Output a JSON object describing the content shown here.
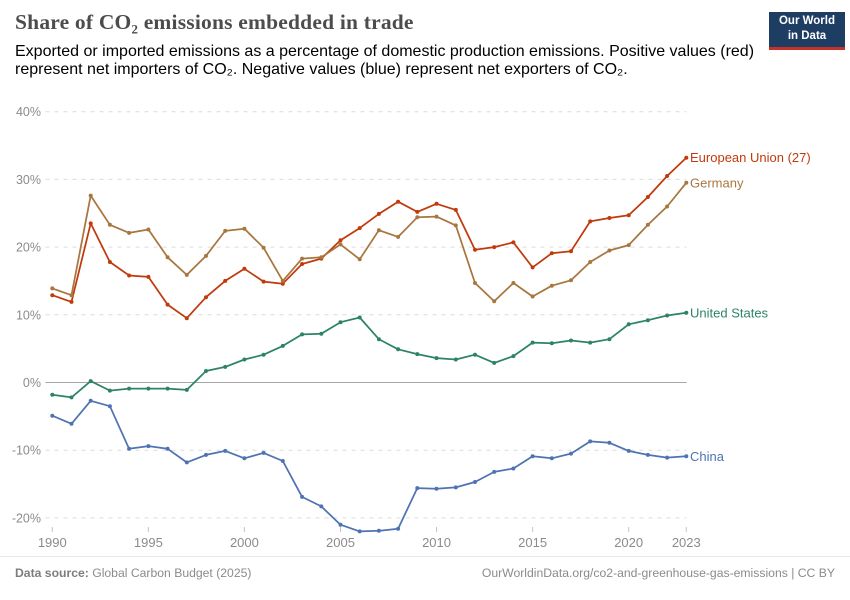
{
  "header": {
    "title": "Share of CO₂ emissions embedded in trade",
    "subtitle_line1": "Exported or imported emissions as a percentage of domestic production emissions. Positive values (red)",
    "subtitle_line2": "represent net importers of CO₂. Negative values (blue) represent net exporters of CO₂."
  },
  "logo": {
    "line1": "Our World",
    "line2": "in Data"
  },
  "chart_data": {
    "type": "line",
    "title": "Share of CO₂ emissions embedded in trade",
    "xlabel": "",
    "ylabel": "",
    "ylim": [
      -24,
      40
    ],
    "yticks": [
      40,
      30,
      20,
      10,
      0,
      -10,
      -20
    ],
    "xticks": [
      1990,
      1995,
      2000,
      2005,
      2010,
      2015,
      2020,
      2023
    ],
    "grid": "dashed-horizontal",
    "legend_position": "right-end-labels",
    "axis": {
      "grid_color": "#dcdcdc",
      "zero_line_color": "#a6a6a6",
      "tick_color": "#c4c4c4"
    },
    "x": [
      1990,
      1991,
      1992,
      1993,
      1994,
      1995,
      1996,
      1997,
      1998,
      1999,
      2000,
      2001,
      2002,
      2003,
      2004,
      2005,
      2006,
      2007,
      2008,
      2009,
      2010,
      2011,
      2012,
      2013,
      2014,
      2015,
      2016,
      2017,
      2018,
      2019,
      2020,
      2021,
      2022,
      2023
    ],
    "series": [
      {
        "name": "European Union (27)",
        "color": "#c13a0c",
        "values": [
          12.9,
          11.9,
          23.5,
          17.8,
          15.8,
          15.6,
          11.5,
          9.5,
          12.6,
          15.0,
          16.8,
          14.9,
          14.6,
          17.5,
          18.3,
          21.0,
          22.8,
          24.9,
          26.7,
          25.2,
          26.4,
          25.5,
          19.6,
          20.0,
          20.7,
          17.0,
          19.1,
          19.4,
          23.8,
          24.3,
          24.7,
          27.4,
          30.5,
          33.2
        ]
      },
      {
        "name": "Germany",
        "color": "#a8763f",
        "values": [
          13.9,
          12.9,
          27.6,
          23.3,
          22.1,
          22.6,
          18.5,
          15.9,
          18.7,
          22.4,
          22.7,
          19.9,
          15.0,
          18.3,
          18.5,
          20.4,
          18.2,
          22.5,
          21.5,
          24.4,
          24.5,
          23.2,
          14.7,
          12.0,
          14.7,
          12.7,
          14.3,
          15.1,
          17.8,
          19.5,
          20.3,
          23.3,
          26.0,
          29.5
        ]
      },
      {
        "name": "United States",
        "color": "#2c8465",
        "values": [
          -1.8,
          -2.2,
          0.2,
          -1.2,
          -0.9,
          -0.9,
          -0.9,
          -1.1,
          1.7,
          2.3,
          3.4,
          4.1,
          5.4,
          7.1,
          7.2,
          8.9,
          9.6,
          6.4,
          4.9,
          4.2,
          3.6,
          3.4,
          4.1,
          2.9,
          3.9,
          5.9,
          5.8,
          6.2,
          5.9,
          6.4,
          8.6,
          9.2,
          9.9,
          10.3
        ]
      },
      {
        "name": "China",
        "color": "#4f73b2",
        "values": [
          -4.9,
          -6.1,
          -2.7,
          -3.5,
          -9.8,
          -9.4,
          -9.8,
          -11.8,
          -10.7,
          -10.1,
          -11.2,
          -10.4,
          -11.6,
          -16.9,
          -18.3,
          -21.0,
          -22.0,
          -21.9,
          -21.6,
          -15.6,
          -15.7,
          -15.5,
          -14.7,
          -13.2,
          -12.7,
          -10.9,
          -11.2,
          -10.5,
          -8.7,
          -8.9,
          -10.1,
          -10.7,
          -11.1,
          -10.9
        ]
      }
    ]
  },
  "footer": {
    "source_label": "Data source:",
    "source_value": " Global Carbon Budget (2025)",
    "attribution": "OurWorldinData.org/co2-and-greenhouse-gas-emissions | CC BY"
  }
}
